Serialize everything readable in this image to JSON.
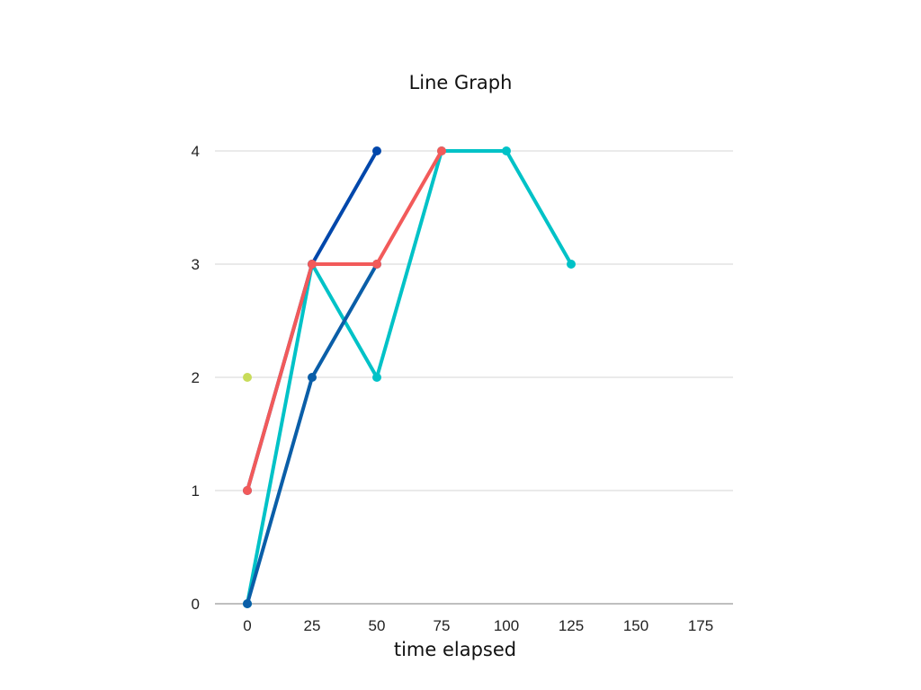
{
  "chart_data": {
    "type": "line",
    "title": "Line Graph",
    "xlabel": "time elapsed",
    "ylabel": "",
    "xlim": [
      -12.5,
      187.5
    ],
    "ylim": [
      0,
      4
    ],
    "xticks": [
      "0",
      "25",
      "50",
      "75",
      "100",
      "125",
      "150",
      "175"
    ],
    "yticks": [
      "0",
      "1",
      "2",
      "3",
      "4"
    ],
    "grid": true,
    "legend": "none",
    "series": [
      {
        "color": "#c8dc5a",
        "points": [
          [
            0,
            2
          ]
        ]
      },
      {
        "color": "#00c2c7",
        "points": [
          [
            0,
            0
          ],
          [
            25,
            3
          ],
          [
            50,
            2
          ],
          [
            75,
            4
          ],
          [
            100,
            4
          ],
          [
            125,
            3
          ]
        ]
      },
      {
        "color": "#0a5ea8",
        "points": [
          [
            0,
            0
          ],
          [
            25,
            2
          ],
          [
            50,
            3
          ]
        ]
      },
      {
        "color": "#0047ab",
        "points": [
          [
            0,
            1
          ],
          [
            25,
            3
          ],
          [
            50,
            4
          ]
        ]
      },
      {
        "color": "#f25a5a",
        "points": [
          [
            0,
            1
          ],
          [
            25,
            3
          ],
          [
            50,
            3
          ],
          [
            75,
            4
          ]
        ]
      }
    ]
  }
}
